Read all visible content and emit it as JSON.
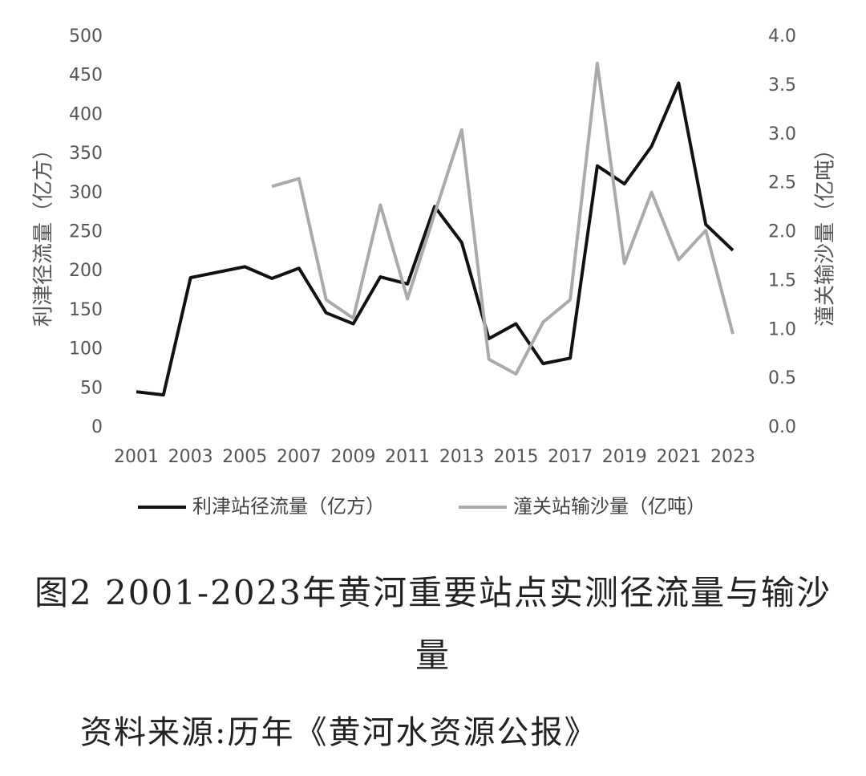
{
  "chart_data": {
    "type": "line",
    "y_label": "利津径流量（亿方）",
    "y2_label": "潼关输沙量（亿吨）",
    "x": [
      2001,
      2002,
      2003,
      2004,
      2005,
      2006,
      2007,
      2008,
      2009,
      2010,
      2011,
      2012,
      2013,
      2014,
      2015,
      2016,
      2017,
      2018,
      2019,
      2020,
      2021,
      2022,
      2023
    ],
    "xlim": [
      2001,
      2023
    ],
    "xticks": [
      2001,
      2003,
      2005,
      2007,
      2009,
      2011,
      2013,
      2015,
      2017,
      2019,
      2021,
      2023
    ],
    "ylim": [
      0,
      500
    ],
    "yticks": [
      0,
      50,
      100,
      150,
      200,
      250,
      300,
      350,
      400,
      450,
      500
    ],
    "y2lim": [
      0,
      4
    ],
    "y2ticks": [
      {
        "value": 0,
        "label": "0.0"
      },
      0.5,
      {
        "value": 1,
        "label": "1.0"
      },
      1.5,
      {
        "value": 2,
        "label": "2.0"
      },
      2.5,
      {
        "value": 3,
        "label": "3.0"
      },
      3.5,
      {
        "value": 4,
        "label": "4.0"
      }
    ],
    "series": [
      {
        "name": "利津站径流量（亿方）",
        "color": "#111111",
        "values": [
          46,
          42,
          192,
          199,
          206,
          191,
          204,
          147,
          133,
          193,
          184,
          283,
          237,
          114,
          133,
          82,
          89,
          335,
          312,
          360,
          441,
          260,
          227
        ]
      },
      {
        "name": "潼关站输沙量（亿吨）",
        "color": "#aaaaaa",
        "axis": "y2",
        "values": [
          null,
          null,
          null,
          null,
          null,
          2.47,
          2.55,
          1.31,
          1.12,
          2.28,
          1.32,
          2.19,
          3.05,
          0.7,
          0.55,
          1.08,
          1.31,
          3.73,
          1.68,
          2.41,
          1.72,
          2.02,
          0.96
        ]
      }
    ]
  },
  "caption": "图2 2001-2023年黄河重要站点实测径流量与输沙量",
  "source": "资料来源:历年《黄河水资源公报》"
}
